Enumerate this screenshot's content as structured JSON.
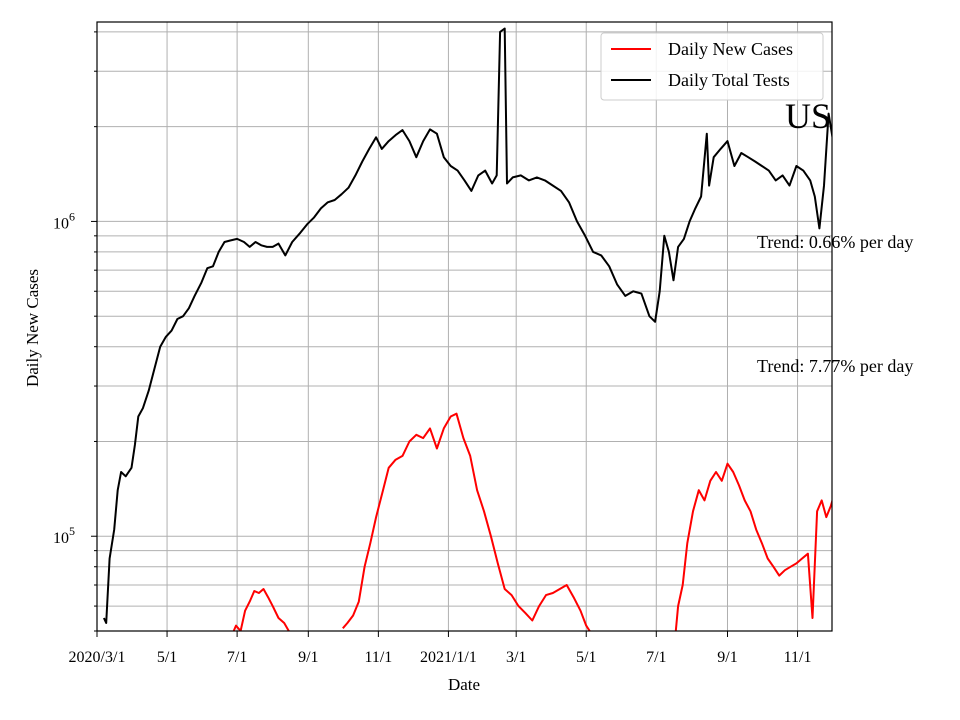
{
  "chart_data": {
    "type": "line",
    "title": "",
    "country_label": "US",
    "xlabel": "Date",
    "ylabel": "Daily New Cases",
    "yscale": "log",
    "ylim": [
      50000,
      4300000
    ],
    "xlim": [
      "2020-03-01",
      "2021-12-01"
    ],
    "grid": true,
    "legend_position": "top-right",
    "x_ticks": [
      {
        "date": "2020-03-01",
        "label": "2020/3/1"
      },
      {
        "date": "2020-05-01",
        "label": "5/1"
      },
      {
        "date": "2020-07-01",
        "label": "7/1"
      },
      {
        "date": "2020-09-01",
        "label": "9/1"
      },
      {
        "date": "2020-11-01",
        "label": "11/1"
      },
      {
        "date": "2021-01-01",
        "label": "2021/1/1"
      },
      {
        "date": "2021-03-01",
        "label": "3/1"
      },
      {
        "date": "2021-05-01",
        "label": "5/1"
      },
      {
        "date": "2021-07-01",
        "label": "7/1"
      },
      {
        "date": "2021-09-01",
        "label": "9/1"
      },
      {
        "date": "2021-11-01",
        "label": "11/1"
      }
    ],
    "y_ticks": [
      {
        "value": 100000,
        "base": "10",
        "exp": "5"
      },
      {
        "value": 1000000,
        "base": "10",
        "exp": "6"
      }
    ],
    "annotations": [
      {
        "text": "Trend: 0.66% per day",
        "series": "Daily Total Tests"
      },
      {
        "text": "Trend: 7.77% per day",
        "series": "Daily New Cases"
      }
    ],
    "series": [
      {
        "name": "Daily Total Tests",
        "color": "#000000",
        "points": [
          [
            "2020-03-07",
            55000
          ],
          [
            "2020-03-09",
            53000
          ],
          [
            "2020-03-12",
            85000
          ],
          [
            "2020-03-16",
            105000
          ],
          [
            "2020-03-19",
            140000
          ],
          [
            "2020-03-22",
            160000
          ],
          [
            "2020-03-26",
            155000
          ],
          [
            "2020-03-31",
            165000
          ],
          [
            "2020-04-03",
            195000
          ],
          [
            "2020-04-06",
            240000
          ],
          [
            "2020-04-10",
            255000
          ],
          [
            "2020-04-15",
            290000
          ],
          [
            "2020-04-20",
            340000
          ],
          [
            "2020-04-25",
            400000
          ],
          [
            "2020-04-30",
            430000
          ],
          [
            "2020-05-05",
            450000
          ],
          [
            "2020-05-10",
            490000
          ],
          [
            "2020-05-15",
            500000
          ],
          [
            "2020-05-20",
            530000
          ],
          [
            "2020-05-25",
            580000
          ],
          [
            "2020-05-31",
            640000
          ],
          [
            "2020-06-05",
            710000
          ],
          [
            "2020-06-10",
            720000
          ],
          [
            "2020-06-15",
            800000
          ],
          [
            "2020-06-20",
            860000
          ],
          [
            "2020-06-25",
            870000
          ],
          [
            "2020-07-01",
            880000
          ],
          [
            "2020-07-07",
            860000
          ],
          [
            "2020-07-12",
            830000
          ],
          [
            "2020-07-17",
            860000
          ],
          [
            "2020-07-22",
            840000
          ],
          [
            "2020-07-27",
            830000
          ],
          [
            "2020-08-01",
            830000
          ],
          [
            "2020-08-06",
            850000
          ],
          [
            "2020-08-12",
            780000
          ],
          [
            "2020-08-18",
            860000
          ],
          [
            "2020-08-25",
            920000
          ],
          [
            "2020-08-31",
            980000
          ],
          [
            "2020-09-06",
            1030000
          ],
          [
            "2020-09-12",
            1100000
          ],
          [
            "2020-09-18",
            1150000
          ],
          [
            "2020-09-24",
            1170000
          ],
          [
            "2020-09-30",
            1220000
          ],
          [
            "2020-10-06",
            1280000
          ],
          [
            "2020-10-12",
            1400000
          ],
          [
            "2020-10-18",
            1550000
          ],
          [
            "2020-10-24",
            1700000
          ],
          [
            "2020-10-30",
            1850000
          ],
          [
            "2020-11-04",
            1700000
          ],
          [
            "2020-11-10",
            1800000
          ],
          [
            "2020-11-16",
            1880000
          ],
          [
            "2020-11-22",
            1950000
          ],
          [
            "2020-11-28",
            1800000
          ],
          [
            "2020-12-04",
            1600000
          ],
          [
            "2020-12-10",
            1800000
          ],
          [
            "2020-12-16",
            1960000
          ],
          [
            "2020-12-22",
            1900000
          ],
          [
            "2020-12-28",
            1600000
          ],
          [
            "2021-01-03",
            1500000
          ],
          [
            "2021-01-09",
            1450000
          ],
          [
            "2021-01-15",
            1350000
          ],
          [
            "2021-01-21",
            1250000
          ],
          [
            "2021-01-27",
            1400000
          ],
          [
            "2021-02-02",
            1450000
          ],
          [
            "2021-02-08",
            1320000
          ],
          [
            "2021-02-12",
            1400000
          ],
          [
            "2021-02-15",
            4000000
          ],
          [
            "2021-02-19",
            4100000
          ],
          [
            "2021-02-21",
            1320000
          ],
          [
            "2021-02-26",
            1380000
          ],
          [
            "2021-03-05",
            1400000
          ],
          [
            "2021-03-12",
            1350000
          ],
          [
            "2021-03-19",
            1380000
          ],
          [
            "2021-03-26",
            1350000
          ],
          [
            "2021-04-02",
            1300000
          ],
          [
            "2021-04-09",
            1250000
          ],
          [
            "2021-04-16",
            1150000
          ],
          [
            "2021-04-23",
            1000000
          ],
          [
            "2021-04-30",
            900000
          ],
          [
            "2021-05-07",
            800000
          ],
          [
            "2021-05-14",
            780000
          ],
          [
            "2021-05-21",
            720000
          ],
          [
            "2021-05-28",
            630000
          ],
          [
            "2021-06-04",
            580000
          ],
          [
            "2021-06-11",
            600000
          ],
          [
            "2021-06-18",
            590000
          ],
          [
            "2021-06-25",
            500000
          ],
          [
            "2021-06-30",
            480000
          ],
          [
            "2021-07-04",
            600000
          ],
          [
            "2021-07-08",
            900000
          ],
          [
            "2021-07-12",
            800000
          ],
          [
            "2021-07-16",
            650000
          ],
          [
            "2021-07-20",
            830000
          ],
          [
            "2021-07-25",
            880000
          ],
          [
            "2021-07-30",
            1000000
          ],
          [
            "2021-08-04",
            1100000
          ],
          [
            "2021-08-09",
            1200000
          ],
          [
            "2021-08-14",
            1900000
          ],
          [
            "2021-08-16",
            1300000
          ],
          [
            "2021-08-20",
            1600000
          ],
          [
            "2021-08-26",
            1700000
          ],
          [
            "2021-09-01",
            1800000
          ],
          [
            "2021-09-07",
            1500000
          ],
          [
            "2021-09-13",
            1650000
          ],
          [
            "2021-09-19",
            1600000
          ],
          [
            "2021-09-25",
            1550000
          ],
          [
            "2021-10-01",
            1500000
          ],
          [
            "2021-10-07",
            1450000
          ],
          [
            "2021-10-13",
            1350000
          ],
          [
            "2021-10-19",
            1400000
          ],
          [
            "2021-10-25",
            1300000
          ],
          [
            "2021-10-31",
            1500000
          ],
          [
            "2021-11-06",
            1450000
          ],
          [
            "2021-11-12",
            1350000
          ],
          [
            "2021-11-16",
            1200000
          ],
          [
            "2021-11-20",
            950000
          ],
          [
            "2021-11-24",
            1300000
          ],
          [
            "2021-11-28",
            2200000
          ],
          [
            "2021-12-02",
            1800000
          ],
          [
            "2021-12-06",
            1600000
          ],
          [
            "2021-12-10",
            1800000
          ],
          [
            "2021-12-14",
            1700000
          ],
          [
            "2021-12-18",
            1900000
          ]
        ]
      },
      {
        "name": "Daily New Cases",
        "color": "#ff0000",
        "segments": [
          [
            [
              "2020-06-28",
              50000
            ],
            [
              "2020-06-30",
              52000
            ],
            [
              "2020-07-04",
              50000
            ],
            [
              "2020-07-08",
              58000
            ],
            [
              "2020-07-12",
              62000
            ],
            [
              "2020-07-16",
              67000
            ],
            [
              "2020-07-20",
              66000
            ],
            [
              "2020-07-24",
              68000
            ],
            [
              "2020-07-28",
              64000
            ],
            [
              "2020-08-01",
              60000
            ],
            [
              "2020-08-06",
              55000
            ],
            [
              "2020-08-11",
              53000
            ],
            [
              "2020-08-15",
              50000
            ]
          ],
          [
            [
              "2020-10-01",
              51000
            ],
            [
              "2020-10-05",
              53000
            ],
            [
              "2020-10-10",
              56000
            ],
            [
              "2020-10-15",
              62000
            ],
            [
              "2020-10-20",
              80000
            ],
            [
              "2020-10-25",
              95000
            ],
            [
              "2020-10-30",
              115000
            ],
            [
              "2020-11-05",
              140000
            ],
            [
              "2020-11-10",
              165000
            ],
            [
              "2020-11-16",
              175000
            ],
            [
              "2020-11-22",
              180000
            ],
            [
              "2020-11-28",
              200000
            ],
            [
              "2020-12-04",
              210000
            ],
            [
              "2020-12-10",
              205000
            ],
            [
              "2020-12-16",
              220000
            ],
            [
              "2020-12-22",
              190000
            ],
            [
              "2020-12-28",
              220000
            ],
            [
              "2021-01-03",
              240000
            ],
            [
              "2021-01-08",
              245000
            ],
            [
              "2021-01-14",
              205000
            ],
            [
              "2021-01-20",
              180000
            ],
            [
              "2021-01-26",
              140000
            ],
            [
              "2021-02-01",
              120000
            ],
            [
              "2021-02-07",
              100000
            ],
            [
              "2021-02-13",
              82000
            ],
            [
              "2021-02-19",
              68000
            ],
            [
              "2021-02-25",
              65000
            ],
            [
              "2021-03-03",
              60000
            ],
            [
              "2021-03-09",
              57000
            ],
            [
              "2021-03-15",
              54000
            ],
            [
              "2021-03-21",
              60000
            ],
            [
              "2021-03-27",
              65000
            ],
            [
              "2021-04-02",
              66000
            ],
            [
              "2021-04-08",
              68000
            ],
            [
              "2021-04-14",
              70000
            ],
            [
              "2021-04-20",
              64000
            ],
            [
              "2021-04-26",
              58000
            ],
            [
              "2021-05-01",
              52000
            ],
            [
              "2021-05-04",
              50000
            ]
          ],
          [
            [
              "2021-07-18",
              50000
            ],
            [
              "2021-07-20",
              60000
            ],
            [
              "2021-07-24",
              70000
            ],
            [
              "2021-07-28",
              95000
            ],
            [
              "2021-08-02",
              120000
            ],
            [
              "2021-08-07",
              140000
            ],
            [
              "2021-08-12",
              130000
            ],
            [
              "2021-08-17",
              150000
            ],
            [
              "2021-08-22",
              160000
            ],
            [
              "2021-08-27",
              150000
            ],
            [
              "2021-09-01",
              170000
            ],
            [
              "2021-09-06",
              160000
            ],
            [
              "2021-09-11",
              145000
            ],
            [
              "2021-09-16",
              130000
            ],
            [
              "2021-09-21",
              120000
            ],
            [
              "2021-09-26",
              105000
            ],
            [
              "2021-10-01",
              95000
            ],
            [
              "2021-10-06",
              85000
            ],
            [
              "2021-10-11",
              80000
            ],
            [
              "2021-10-16",
              75000
            ],
            [
              "2021-10-21",
              78000
            ],
            [
              "2021-10-26",
              80000
            ],
            [
              "2021-10-31",
              82000
            ],
            [
              "2021-11-05",
              85000
            ],
            [
              "2021-11-10",
              88000
            ],
            [
              "2021-11-14",
              55000
            ],
            [
              "2021-11-18",
              120000
            ],
            [
              "2021-11-22",
              130000
            ],
            [
              "2021-11-26",
              115000
            ],
            [
              "2021-11-30",
              125000
            ],
            [
              "2021-12-04",
              140000
            ],
            [
              "2021-12-08",
              180000
            ],
            [
              "2021-12-12",
              220000
            ],
            [
              "2021-12-16",
              290000
            ],
            [
              "2021-12-20",
              450000
            ]
          ]
        ]
      }
    ]
  }
}
